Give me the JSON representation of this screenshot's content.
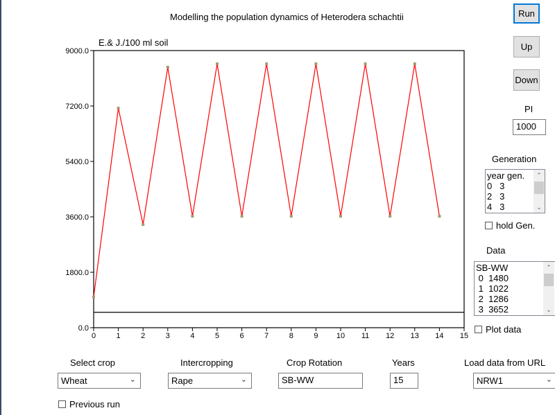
{
  "title": "Modelling the population dynamics of Heterodera schachtii",
  "buttons": {
    "run": "Run",
    "up": "Up",
    "down": "Down"
  },
  "pi": {
    "label": "PI",
    "value": "1000"
  },
  "generation": {
    "label": "Generation",
    "items": [
      "year gen.",
      "0   3",
      "2   3",
      "4   3"
    ],
    "hold_label": "hold Gen.",
    "hold_checked": false
  },
  "data_panel": {
    "label": "Data",
    "items": [
      "SB-WW",
      " 0  1480",
      " 1  1022",
      " 2  1286",
      " 3  3652"
    ],
    "plot_label": "Plot data",
    "plot_checked": false
  },
  "controls": {
    "select_crop": {
      "label": "Select crop",
      "value": "Wheat"
    },
    "intercropping": {
      "label": "Intercropping",
      "value": "Rape"
    },
    "crop_rotation": {
      "label": "Crop Rotation",
      "value": "SB-WW"
    },
    "years": {
      "label": "Years",
      "value": "15"
    },
    "load_url": {
      "label": "Load data from URL",
      "value": "NRW1"
    },
    "previous_run": {
      "label": "Previous run",
      "checked": false
    }
  },
  "chart_data": {
    "type": "line",
    "ylabel": "E.& J./100 ml soil",
    "xlim": [
      0,
      15
    ],
    "ylim": [
      0,
      9000
    ],
    "xticks": [
      "0",
      "1",
      "2",
      "3",
      "4",
      "5",
      "6",
      "7",
      "8",
      "9",
      "10",
      "11",
      "12",
      "13",
      "14",
      "15"
    ],
    "yticks": [
      "0.0",
      "1800.0",
      "3600.0",
      "5400.0",
      "7200.0",
      "9000.0"
    ],
    "x": [
      0,
      1,
      2,
      3,
      4,
      5,
      6,
      7,
      8,
      9,
      10,
      11,
      12,
      13,
      14
    ],
    "values": [
      1000,
      7130,
      3350,
      8460,
      3620,
      8570,
      3620,
      8570,
      3620,
      8570,
      3620,
      8570,
      3620,
      8570,
      3620
    ],
    "threshold": 500,
    "line_color": "#ff0000",
    "marker_color": "#a89878"
  }
}
